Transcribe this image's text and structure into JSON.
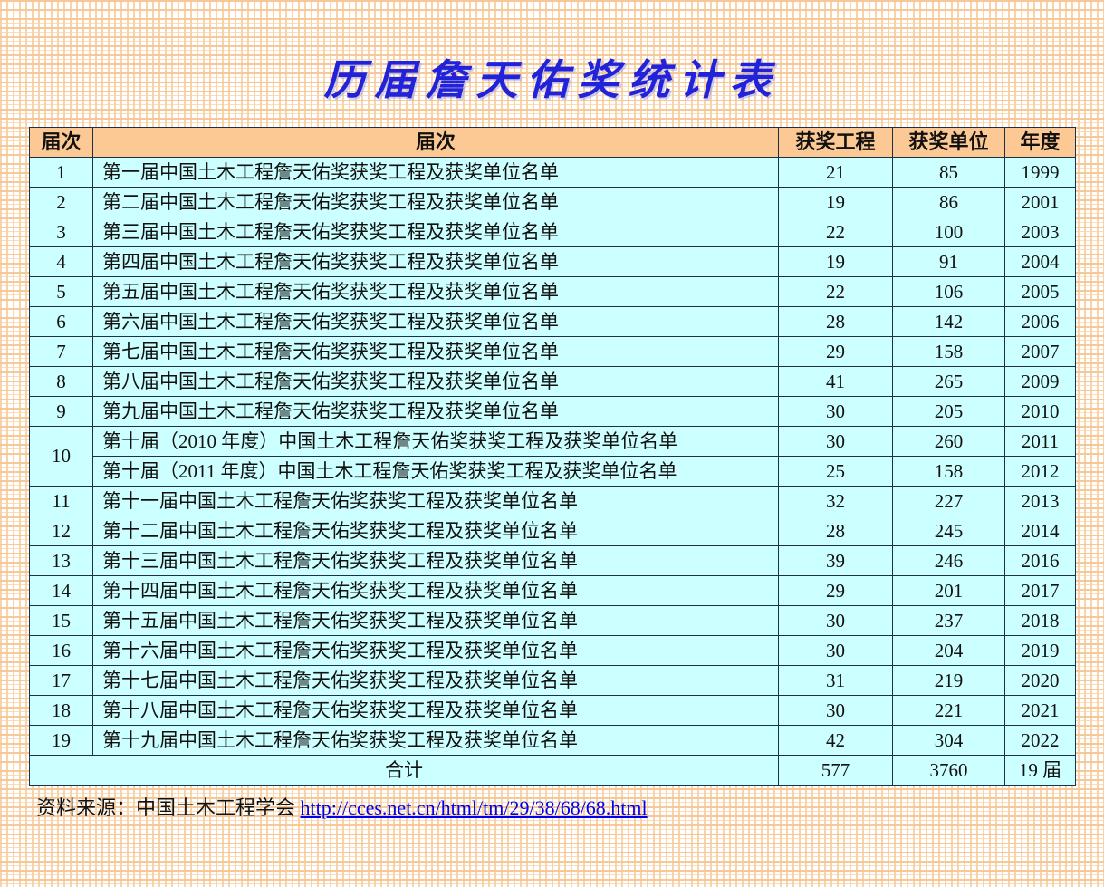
{
  "page": {
    "title": "历届詹天佑奖统计表"
  },
  "colors": {
    "title_blue": "#2222D8",
    "header_bg": "#FCC893",
    "cell_bg": "#CCFFFF",
    "border": "#1C3146",
    "grid_line": "#F8CEA0",
    "link_blue": "#0000EE"
  },
  "table": {
    "headers": [
      "届次",
      "届次",
      "获奖工程",
      "获奖单位",
      "年度"
    ],
    "rows": [
      {
        "no": "1",
        "rowspan": 1,
        "name": "第一届中国土木工程詹天佑奖获奖工程及获奖单位名单",
        "projects": "21",
        "units": "85",
        "year": "1999"
      },
      {
        "no": "2",
        "rowspan": 1,
        "name": "第二届中国土木工程詹天佑奖获奖工程及获奖单位名单",
        "projects": "19",
        "units": "86",
        "year": "2001"
      },
      {
        "no": "3",
        "rowspan": 1,
        "name": "第三届中国土木工程詹天佑奖获奖工程及获奖单位名单",
        "projects": "22",
        "units": "100",
        "year": "2003"
      },
      {
        "no": "4",
        "rowspan": 1,
        "name": "第四届中国土木工程詹天佑奖获奖工程及获奖单位名单",
        "projects": "19",
        "units": "91",
        "year": "2004"
      },
      {
        "no": "5",
        "rowspan": 1,
        "name": "第五届中国土木工程詹天佑奖获奖工程及获奖单位名单",
        "projects": "22",
        "units": "106",
        "year": "2005"
      },
      {
        "no": "6",
        "rowspan": 1,
        "name": "第六届中国土木工程詹天佑奖获奖工程及获奖单位名单",
        "projects": "28",
        "units": "142",
        "year": "2006"
      },
      {
        "no": "7",
        "rowspan": 1,
        "name": "第七届中国土木工程詹天佑奖获奖工程及获奖单位名单",
        "projects": "29",
        "units": "158",
        "year": "2007"
      },
      {
        "no": "8",
        "rowspan": 1,
        "name": "第八届中国土木工程詹天佑奖获奖工程及获奖单位名单",
        "projects": "41",
        "units": "265",
        "year": "2009"
      },
      {
        "no": "9",
        "rowspan": 1,
        "name": "第九届中国土木工程詹天佑奖获奖工程及获奖单位名单",
        "projects": "30",
        "units": "205",
        "year": "2010"
      },
      {
        "no": "10",
        "rowspan": 2,
        "name": "第十届（2010 年度）中国土木工程詹天佑奖获奖工程及获奖单位名单",
        "projects": "30",
        "units": "260",
        "year": "2011"
      },
      {
        "no": null,
        "rowspan": 1,
        "name": "第十届（2011 年度）中国土木工程詹天佑奖获奖工程及获奖单位名单",
        "projects": "25",
        "units": "158",
        "year": "2012"
      },
      {
        "no": "11",
        "rowspan": 1,
        "name": "第十一届中国土木工程詹天佑奖获奖工程及获奖单位名单",
        "projects": "32",
        "units": "227",
        "year": "2013"
      },
      {
        "no": "12",
        "rowspan": 1,
        "name": "第十二届中国土木工程詹天佑奖获奖工程及获奖单位名单",
        "projects": "28",
        "units": "245",
        "year": "2014"
      },
      {
        "no": "13",
        "rowspan": 1,
        "name": "第十三届中国土木工程詹天佑奖获奖工程及获奖单位名单",
        "projects": "39",
        "units": "246",
        "year": "2016"
      },
      {
        "no": "14",
        "rowspan": 1,
        "name": "第十四届中国土木工程詹天佑奖获奖工程及获奖单位名单",
        "projects": "29",
        "units": "201",
        "year": "2017"
      },
      {
        "no": "15",
        "rowspan": 1,
        "name": "第十五届中国土木工程詹天佑奖获奖工程及获奖单位名单",
        "projects": "30",
        "units": "237",
        "year": "2018"
      },
      {
        "no": "16",
        "rowspan": 1,
        "name": "第十六届中国土木工程詹天佑奖获奖工程及获奖单位名单",
        "projects": "30",
        "units": "204",
        "year": "2019"
      },
      {
        "no": "17",
        "rowspan": 1,
        "name": "第十七届中国土木工程詹天佑奖获奖工程及获奖单位名单",
        "projects": "31",
        "units": "219",
        "year": "2020"
      },
      {
        "no": "18",
        "rowspan": 1,
        "name": "第十八届中国土木工程詹天佑奖获奖工程及获奖单位名单",
        "projects": "30",
        "units": "221",
        "year": "2021"
      },
      {
        "no": "19",
        "rowspan": 1,
        "name": "第十九届中国土木工程詹天佑奖获奖工程及获奖单位名单",
        "projects": "42",
        "units": "304",
        "year": "2022"
      }
    ],
    "total": {
      "label": "合计",
      "projects": "577",
      "units": "3760",
      "year": "19 届"
    }
  },
  "footer": {
    "source_label": "资料来源：中国土木工程学会 ",
    "link_text": "http://cces.net.cn/html/tm/29/38/68/68.html"
  }
}
